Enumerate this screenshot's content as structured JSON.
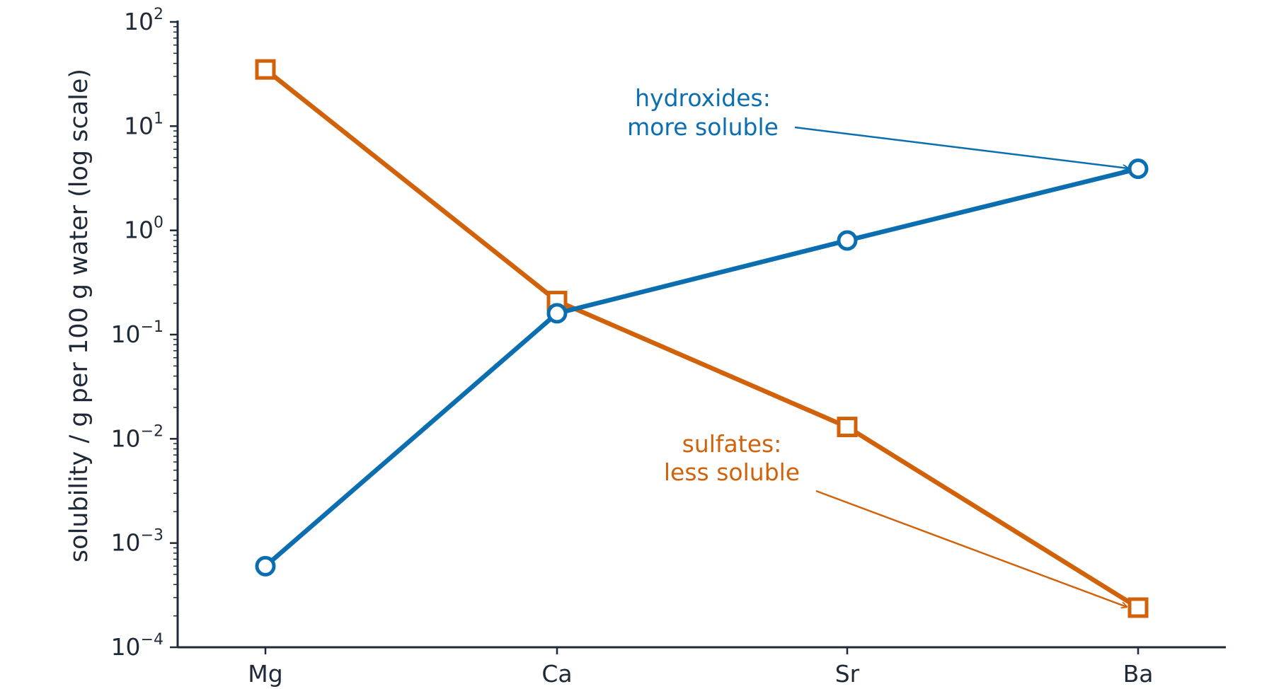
{
  "chart_data": {
    "type": "line",
    "categories": [
      "Mg",
      "Ca",
      "Sr",
      "Ba"
    ],
    "ylabel": "solubility / g per 100 g water  (log scale)",
    "yscale": "log",
    "ylim": [
      0.0001,
      100
    ],
    "yticks": [
      {
        "value": 0.0001,
        "base": "10",
        "exp": "−4"
      },
      {
        "value": 0.001,
        "base": "10",
        "exp": "−3"
      },
      {
        "value": 0.01,
        "base": "10",
        "exp": "−2"
      },
      {
        "value": 0.1,
        "base": "10",
        "exp": "−1"
      },
      {
        "value": 1,
        "base": "10",
        "exp": "0"
      },
      {
        "value": 10,
        "base": "10",
        "exp": "1"
      },
      {
        "value": 100,
        "base": "10",
        "exp": "2"
      }
    ],
    "grid": false,
    "series": [
      {
        "key": "hydroxides",
        "values": [
          0.0006,
          0.16,
          0.8,
          3.9
        ],
        "color": "#0a6eb0",
        "marker": "circle"
      },
      {
        "key": "sulfates",
        "values": [
          35,
          0.21,
          0.013,
          0.00024
        ],
        "color": "#d2620a",
        "marker": "square"
      }
    ],
    "annotations": [
      {
        "series": "hydroxides",
        "lines": [
          "hydroxides:",
          "more soluble"
        ],
        "color": "#0a6eb0",
        "target_category": "Ba",
        "target_value": 3.9
      },
      {
        "series": "sulfates",
        "lines": [
          "sulfates:",
          "less soluble"
        ],
        "color": "#d2620a",
        "target_category": "Ba",
        "target_value": 0.00024
      }
    ]
  }
}
